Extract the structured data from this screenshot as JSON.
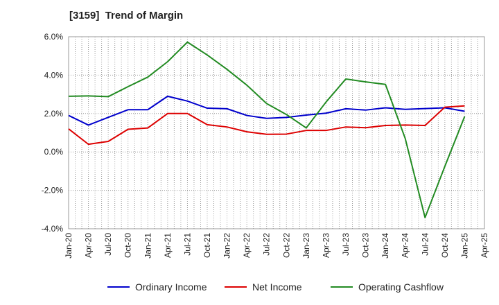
{
  "chart_data": {
    "type": "line",
    "title": "[3159]  Trend of Margin",
    "xlabel": "",
    "ylabel": "",
    "ylim": [
      -4.0,
      6.0
    ],
    "yticks": [
      6.0,
      4.0,
      2.0,
      0.0,
      -2.0,
      -4.0
    ],
    "ytick_labels": [
      "6.0%",
      "4.0%",
      "2.0%",
      "0.0%",
      "-2.0%",
      "-4.0%"
    ],
    "x": [
      "Jan-20",
      "Apr-20",
      "Jul-20",
      "Oct-20",
      "Jan-21",
      "Apr-21",
      "Jul-21",
      "Oct-21",
      "Jan-22",
      "Apr-22",
      "Jul-22",
      "Oct-22",
      "Jan-23",
      "Apr-23",
      "Jul-23",
      "Oct-23",
      "Jan-24",
      "Apr-24",
      "Jul-24",
      "Oct-24",
      "Jan-25",
      "Apr-25"
    ],
    "grid": true,
    "legend_position": "bottom",
    "series": [
      {
        "name": "Ordinary Income",
        "color": "#0000cc",
        "values": [
          1.9,
          1.4,
          1.8,
          2.2,
          2.2,
          2.9,
          2.65,
          2.28,
          2.25,
          1.9,
          1.75,
          1.8,
          1.92,
          2.02,
          2.25,
          2.18,
          2.3,
          2.22,
          2.26,
          2.3,
          2.12,
          null
        ]
      },
      {
        "name": "Net Income",
        "color": "#dd0000",
        "values": [
          1.2,
          0.4,
          0.55,
          1.18,
          1.25,
          2.0,
          2.0,
          1.42,
          1.3,
          1.05,
          0.92,
          0.93,
          1.12,
          1.12,
          1.3,
          1.26,
          1.38,
          1.4,
          1.38,
          2.33,
          2.4,
          null
        ]
      },
      {
        "name": "Operating Cashflow",
        "color": "#228b22",
        "values": [
          2.9,
          2.92,
          2.88,
          3.4,
          3.9,
          4.7,
          5.72,
          5.05,
          4.3,
          3.48,
          2.52,
          1.95,
          1.25,
          2.6,
          3.8,
          3.65,
          3.52,
          0.7,
          -3.42,
          -0.75,
          1.85,
          null
        ]
      }
    ]
  }
}
